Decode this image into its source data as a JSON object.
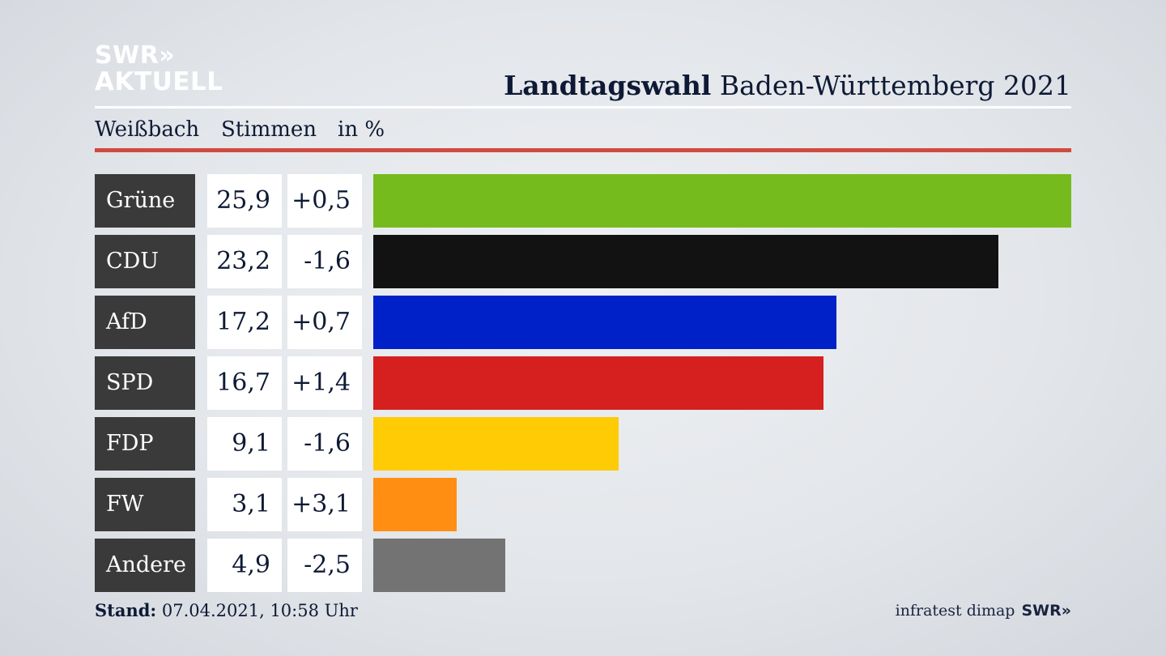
{
  "logo": {
    "line1": "SWR»",
    "line2": "AKTUELL"
  },
  "header": {
    "title_bold": "Landtagswahl",
    "title_rest": " Baden-Württemberg 2021",
    "location": "Weißbach",
    "col_votes": "Stimmen",
    "col_unit": "in %"
  },
  "colors": {
    "accent_rule": "#d14a3d",
    "name_cell": "#3a3a3a"
  },
  "chart_data": {
    "type": "bar",
    "orientation": "horizontal",
    "categories": [
      "Grüne",
      "CDU",
      "AfD",
      "SPD",
      "FDP",
      "FW",
      "Andere"
    ],
    "values": [
      25.9,
      23.2,
      17.2,
      16.7,
      9.1,
      3.1,
      4.9
    ],
    "value_labels": [
      "25,9",
      "23,2",
      "17,2",
      "16,7",
      "9,1",
      "3,1",
      "4,9"
    ],
    "diff_labels": [
      "+0,5",
      "-1,6",
      "+0,7",
      "+1,4",
      "-1,6",
      "+3,1",
      "-2,5"
    ],
    "colors": [
      "#76bb1d",
      "#121212",
      "#0021c8",
      "#d61f1f",
      "#ffcb05",
      "#ff8e13",
      "#737373"
    ],
    "xlim": [
      0,
      25.9
    ]
  },
  "footer": {
    "stand_label": "Stand:",
    "stand_value": " 07.04.2021, 10:58 Uhr",
    "source": "infratest dimap",
    "brand": "SWR»"
  }
}
